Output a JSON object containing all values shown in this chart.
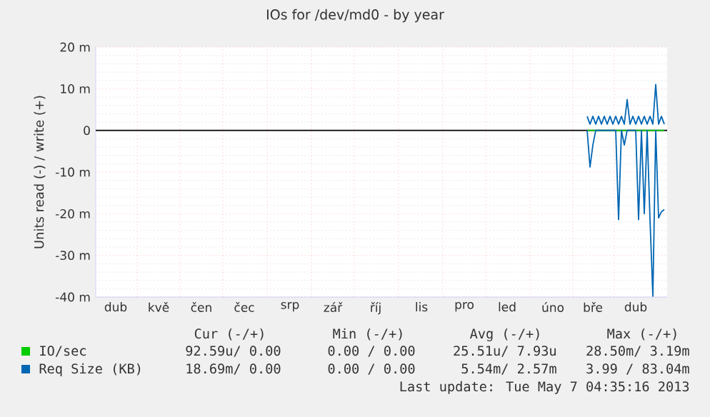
{
  "chart_data": {
    "type": "line",
    "title": "IOs for /dev/md0 - by year",
    "ylabel": "Units read (-) / write (+)",
    "categories": [
      null,
      null,
      null,
      null,
      null,
      null,
      null,
      "dub",
      null,
      null,
      null,
      null,
      null,
      null,
      null,
      null,
      null,
      null,
      null,
      null,
      null,
      null,
      "kvě",
      null,
      null,
      null,
      null,
      null,
      null,
      null,
      null,
      null,
      null,
      null,
      null,
      null,
      null,
      "čen",
      null,
      null,
      null,
      null,
      null,
      null,
      null,
      null,
      null,
      null,
      null,
      null,
      null,
      null,
      "čec",
      null,
      null,
      null,
      null,
      null,
      null,
      null,
      null,
      null,
      null,
      null,
      null,
      null,
      null,
      null,
      "srp",
      null,
      null,
      null,
      null,
      null,
      null,
      null,
      null,
      null,
      null,
      null,
      null,
      null,
      null,
      "zář",
      null,
      null,
      null,
      null,
      null,
      null,
      null,
      null,
      null,
      null,
      null,
      null,
      null,
      null,
      "říj",
      null,
      null,
      null,
      null,
      null,
      null,
      null,
      null,
      null,
      null,
      null,
      null,
      null,
      null,
      null,
      "lis",
      null,
      null,
      null,
      null,
      null,
      null,
      null,
      null,
      null,
      null,
      null,
      null,
      null,
      null,
      "pro",
      null,
      null,
      null,
      null,
      null,
      null,
      null,
      null,
      null,
      null,
      null,
      null,
      null,
      null,
      "led",
      null,
      null,
      null,
      null,
      null,
      null,
      null,
      null,
      null,
      null,
      null,
      null,
      null,
      null,
      null,
      "úno",
      null,
      null,
      null,
      null,
      null,
      null,
      null,
      null,
      null,
      null,
      null,
      null,
      null,
      "bře",
      null,
      null,
      null,
      null,
      null,
      null,
      null,
      null,
      null,
      null,
      null,
      null,
      null,
      null,
      "dub",
      null,
      null,
      null,
      null,
      null,
      null,
      null,
      null,
      null,
      null,
      null
    ],
    "ylim": [
      -40,
      20
    ],
    "yticks": [
      {
        "value": -40,
        "label": "-40 m"
      },
      {
        "value": -30,
        "label": "-30 m"
      },
      {
        "value": -20,
        "label": "-20 m"
      },
      {
        "value": -10,
        "label": "-10 m"
      },
      0,
      {
        "value": 10,
        "label": "10 m"
      },
      {
        "value": 20,
        "label": "20 m"
      }
    ],
    "grid": true,
    "legend": "bottom left",
    "ref_lines": [
      {
        "axis": "y",
        "value": 0,
        "color": "#000000"
      }
    ],
    "series": [
      {
        "name": "IO/sec",
        "color": "#00cc00",
        "values": [
          null,
          null,
          null,
          null,
          null,
          null,
          null,
          null,
          null,
          null,
          null,
          null,
          null,
          null,
          null,
          null,
          null,
          null,
          null,
          null,
          null,
          null,
          null,
          null,
          null,
          null,
          null,
          null,
          null,
          null,
          null,
          null,
          null,
          null,
          null,
          null,
          null,
          null,
          null,
          null,
          null,
          null,
          null,
          null,
          null,
          null,
          null,
          null,
          null,
          null,
          null,
          null,
          null,
          null,
          null,
          null,
          null,
          null,
          null,
          null,
          null,
          null,
          null,
          null,
          null,
          null,
          null,
          null,
          null,
          null,
          null,
          null,
          null,
          null,
          null,
          null,
          null,
          null,
          null,
          null,
          null,
          null,
          null,
          null,
          null,
          null,
          null,
          null,
          null,
          null,
          null,
          null,
          null,
          null,
          null,
          null,
          null,
          null,
          null,
          null,
          null,
          null,
          null,
          null,
          null,
          null,
          null,
          null,
          null,
          null,
          null,
          null,
          null,
          null,
          null,
          null,
          null,
          null,
          null,
          null,
          null,
          null,
          null,
          null,
          null,
          null,
          null,
          null,
          null,
          null,
          null,
          null,
          null,
          null,
          null,
          null,
          null,
          null,
          null,
          null,
          null,
          null,
          null,
          null,
          null,
          null,
          null,
          null,
          null,
          null,
          null,
          null,
          null,
          null,
          null,
          null,
          null,
          null,
          null,
          null,
          null,
          null,
          null,
          null,
          null,
          null,
          null,
          null,
          null,
          null,
          null,
          null,
          0,
          0,
          0,
          0,
          0,
          0,
          0,
          0,
          0,
          0,
          0,
          0,
          0,
          0,
          0,
          0,
          0,
          0,
          0,
          0,
          0,
          0,
          0,
          0,
          0,
          0,
          0,
          0,
          null
        ]
      },
      {
        "name": "Req Size (KB)",
        "color": "#0066b3",
        "values": [
          null,
          null,
          null,
          null,
          null,
          null,
          null,
          null,
          null,
          null,
          null,
          null,
          null,
          null,
          null,
          null,
          null,
          null,
          null,
          null,
          null,
          null,
          null,
          null,
          null,
          null,
          null,
          null,
          null,
          null,
          null,
          null,
          null,
          null,
          null,
          null,
          null,
          null,
          null,
          null,
          null,
          null,
          null,
          null,
          null,
          null,
          null,
          null,
          null,
          null,
          null,
          null,
          null,
          null,
          null,
          null,
          null,
          null,
          null,
          null,
          null,
          null,
          null,
          null,
          null,
          null,
          null,
          null,
          null,
          null,
          null,
          null,
          null,
          null,
          null,
          null,
          null,
          null,
          null,
          null,
          null,
          null,
          null,
          null,
          null,
          null,
          null,
          null,
          null,
          null,
          null,
          null,
          null,
          null,
          null,
          null,
          null,
          null,
          null,
          null,
          null,
          null,
          null,
          null,
          null,
          null,
          null,
          null,
          null,
          null,
          null,
          null,
          null,
          null,
          null,
          null,
          null,
          null,
          null,
          null,
          null,
          null,
          null,
          null,
          null,
          null,
          null,
          null,
          null,
          null,
          null,
          null,
          null,
          null,
          null,
          null,
          null,
          null,
          null,
          null,
          null,
          null,
          null,
          null,
          null,
          null,
          null,
          null,
          null,
          null,
          null,
          null,
          null,
          null,
          null,
          null,
          null,
          null,
          null,
          null,
          null,
          null,
          null,
          null,
          null,
          null,
          null,
          null,
          null,
          null,
          null,
          null,
          3.4,
          1.5,
          3.4,
          1.5,
          3.4,
          1.5,
          3.4,
          1.5,
          3.4,
          1.5,
          3.4,
          1.5,
          3.4,
          1.5,
          7.4,
          1.5,
          3.4,
          1.5,
          3.4,
          1.5,
          3.4,
          1.5,
          3.4,
          1.5,
          11,
          1.5,
          3.4,
          1.5,
          null
        ]
      },
      {
        "color": "#0066b3",
        "values": [
          null,
          null,
          null,
          null,
          null,
          null,
          null,
          null,
          null,
          null,
          null,
          null,
          null,
          null,
          null,
          null,
          null,
          null,
          null,
          null,
          null,
          null,
          null,
          null,
          null,
          null,
          null,
          null,
          null,
          null,
          null,
          null,
          null,
          null,
          null,
          null,
          null,
          null,
          null,
          null,
          null,
          null,
          null,
          null,
          null,
          null,
          null,
          null,
          null,
          null,
          null,
          null,
          null,
          null,
          null,
          null,
          null,
          null,
          null,
          null,
          null,
          null,
          null,
          null,
          null,
          null,
          null,
          null,
          null,
          null,
          null,
          null,
          null,
          null,
          null,
          null,
          null,
          null,
          null,
          null,
          null,
          null,
          null,
          null,
          null,
          null,
          null,
          null,
          null,
          null,
          null,
          null,
          null,
          null,
          null,
          null,
          null,
          null,
          null,
          null,
          null,
          null,
          null,
          null,
          null,
          null,
          null,
          null,
          null,
          null,
          null,
          null,
          null,
          null,
          null,
          null,
          null,
          null,
          null,
          null,
          null,
          null,
          null,
          null,
          null,
          null,
          null,
          null,
          null,
          null,
          null,
          null,
          null,
          null,
          null,
          null,
          null,
          null,
          null,
          null,
          null,
          null,
          null,
          null,
          null,
          null,
          null,
          null,
          null,
          null,
          null,
          null,
          null,
          null,
          null,
          null,
          null,
          null,
          null,
          null,
          null,
          null,
          null,
          null,
          null,
          null,
          null,
          null,
          null,
          null,
          null,
          null,
          0,
          -8.8,
          -3.5,
          0,
          0,
          0,
          0,
          0,
          0,
          0,
          0,
          -21.4,
          0,
          -3.5,
          0,
          0,
          0,
          0,
          -21.4,
          0,
          -20,
          0,
          -21.4,
          -39.8,
          0,
          -21,
          -19.5,
          -19,
          null
        ]
      }
    ],
    "annotations": [
      "Cur (-/+)",
      "Min (-/+)",
      "Avg (-/+)",
      "Max (-/+)",
      "92.59u/ 0.00",
      "0.00 / 0.00",
      "25.51u/ 7.93u",
      "28.50m/ 3.19m",
      "18.69m/ 0.00",
      "0.00 / 0.00",
      "5.54m/ 2.57m",
      "3.99 / 83.04m",
      "Last update: Tue May  7 04:35:16 2013"
    ]
  }
}
